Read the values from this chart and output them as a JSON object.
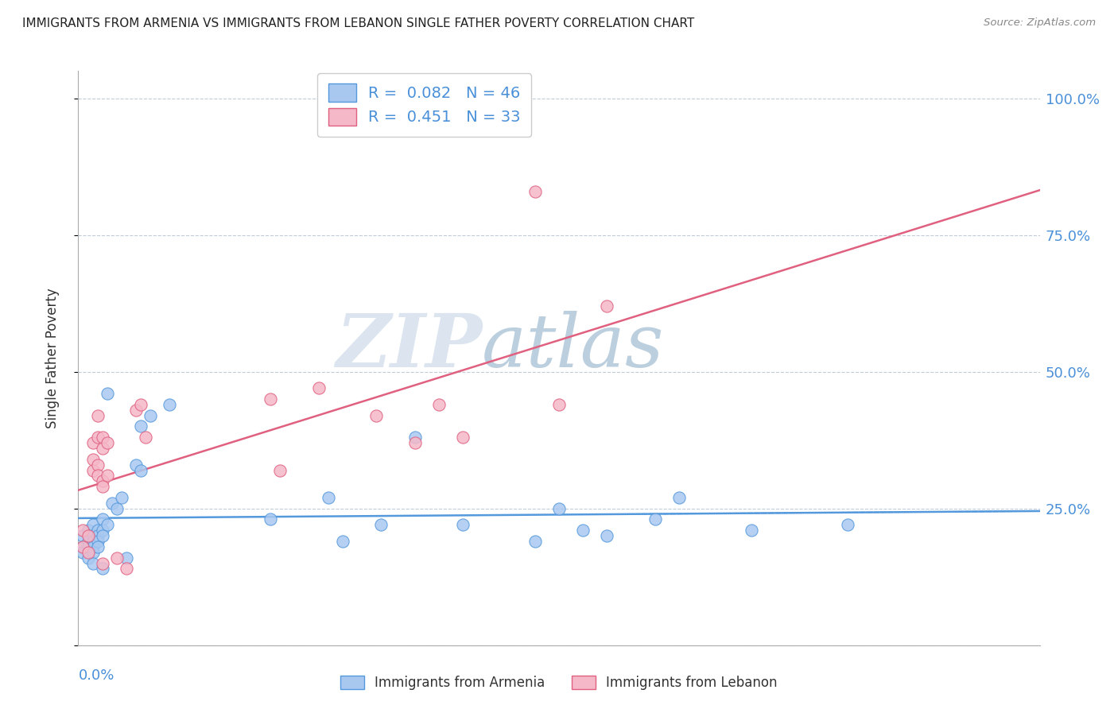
{
  "title": "IMMIGRANTS FROM ARMENIA VS IMMIGRANTS FROM LEBANON SINGLE FATHER POVERTY CORRELATION CHART",
  "source": "Source: ZipAtlas.com",
  "ylabel": "Single Father Poverty",
  "color_armenia": "#a8c8f0",
  "color_lebanon": "#f5b8c8",
  "line_color_armenia": "#5599dd",
  "line_color_lebanon": "#e06080",
  "watermark_zip": "ZIP",
  "watermark_atlas": "atlas",
  "watermark_color_zip": "#c8d8e8",
  "watermark_color_atlas": "#9ab8d0",
  "armenia_x": [
    0.001,
    0.001,
    0.001,
    0.002,
    0.002,
    0.002,
    0.002,
    0.003,
    0.003,
    0.003,
    0.003,
    0.003,
    0.003,
    0.004,
    0.004,
    0.004,
    0.004,
    0.005,
    0.005,
    0.005,
    0.005,
    0.006,
    0.006,
    0.007,
    0.008,
    0.009,
    0.01,
    0.012,
    0.013,
    0.013,
    0.015,
    0.019,
    0.04,
    0.052,
    0.055,
    0.063,
    0.07,
    0.08,
    0.095,
    0.1,
    0.105,
    0.11,
    0.12,
    0.125,
    0.14,
    0.16
  ],
  "armenia_y": [
    0.2,
    0.18,
    0.17,
    0.21,
    0.19,
    0.18,
    0.16,
    0.22,
    0.2,
    0.19,
    0.18,
    0.17,
    0.15,
    0.21,
    0.2,
    0.19,
    0.18,
    0.23,
    0.21,
    0.2,
    0.14,
    0.46,
    0.22,
    0.26,
    0.25,
    0.27,
    0.16,
    0.33,
    0.32,
    0.4,
    0.42,
    0.44,
    0.23,
    0.27,
    0.19,
    0.22,
    0.38,
    0.22,
    0.19,
    0.25,
    0.21,
    0.2,
    0.23,
    0.27,
    0.21,
    0.22
  ],
  "lebanon_x": [
    0.001,
    0.001,
    0.002,
    0.002,
    0.003,
    0.003,
    0.003,
    0.004,
    0.004,
    0.004,
    0.004,
    0.005,
    0.005,
    0.005,
    0.005,
    0.005,
    0.006,
    0.006,
    0.008,
    0.01,
    0.012,
    0.013,
    0.014,
    0.04,
    0.042,
    0.05,
    0.062,
    0.07,
    0.075,
    0.08,
    0.095,
    0.1,
    0.11
  ],
  "lebanon_y": [
    0.21,
    0.18,
    0.2,
    0.17,
    0.37,
    0.34,
    0.32,
    0.42,
    0.38,
    0.33,
    0.31,
    0.38,
    0.36,
    0.3,
    0.29,
    0.15,
    0.37,
    0.31,
    0.16,
    0.14,
    0.43,
    0.44,
    0.38,
    0.45,
    0.32,
    0.47,
    0.42,
    0.37,
    0.44,
    0.38,
    0.83,
    0.44,
    0.62
  ],
  "xlim": [
    0.0,
    0.2
  ],
  "ylim": [
    0.0,
    1.05
  ],
  "ytick_vals": [
    0.0,
    0.25,
    0.5,
    0.75,
    1.0
  ],
  "ytick_labels": [
    "",
    "25.0%",
    "50.0%",
    "75.0%",
    "100.0%"
  ]
}
